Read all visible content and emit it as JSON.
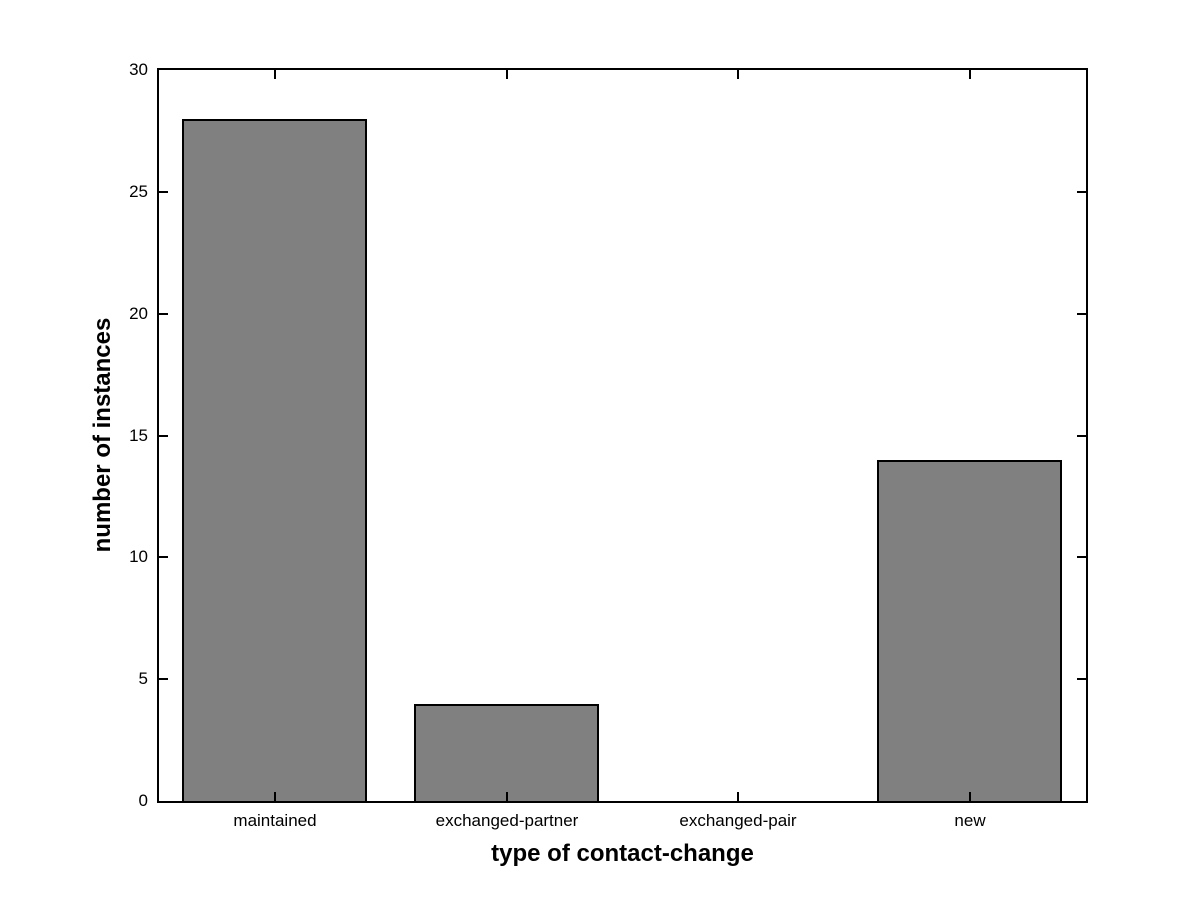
{
  "chart_data": {
    "type": "bar",
    "categories": [
      "maintained",
      "exchanged-partner",
      "exchanged-pair",
      "new"
    ],
    "values": [
      28,
      4,
      0,
      14
    ],
    "xlabel": "type of contact-change",
    "ylabel": "number of instances",
    "ylim": [
      0,
      30
    ],
    "yticks": [
      0,
      5,
      10,
      15,
      20,
      25,
      30
    ],
    "bar_color": "#808080",
    "edge_color": "#000000",
    "axis_color": "#000000",
    "background_color": "#ffffff",
    "bar_width_fraction": 0.8,
    "grid": false,
    "box": true,
    "legend_position": "none"
  }
}
